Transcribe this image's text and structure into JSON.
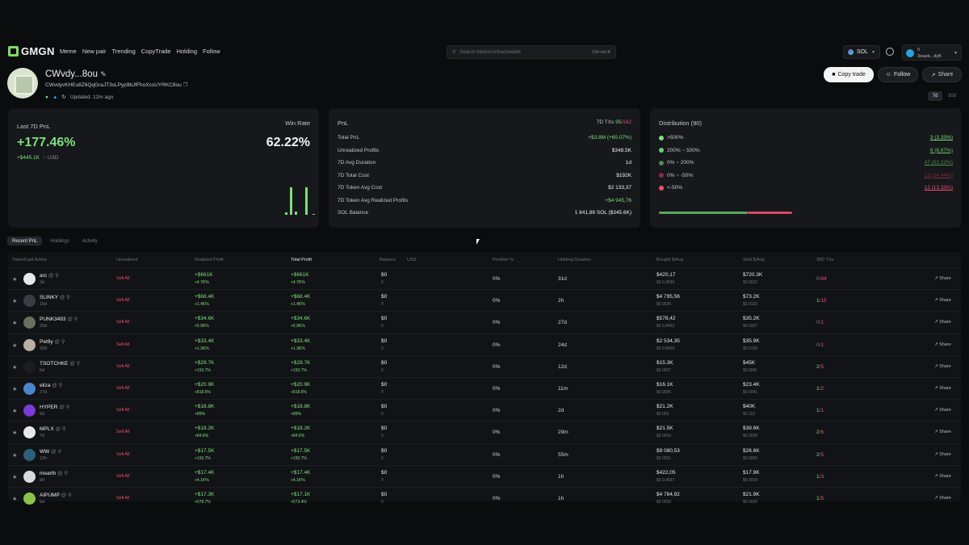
{
  "nav": {
    "logo": "GMGN",
    "links": [
      "Meme",
      "New pair",
      "Trending",
      "CopyTrade",
      "Holding",
      "Follow"
    ],
    "search_placeholder": "Search token/contract/wallet",
    "search_shortcut": "Ctrl ctrl K",
    "chain": "SOL",
    "wallet_balance": "0",
    "wallet_addr": "3wazk...dyB"
  },
  "profile": {
    "name": "CWvdy...8ou",
    "address": "CWvdyvKHEu8Z6QqGraJT3sLPyp9bJfFhoXcsUYRKC8ou",
    "updated": "Updated: 12m ago",
    "copy_trade_label": "Copy trade",
    "follow_label": "Follow",
    "share_label": "Share",
    "period_7d": "7d",
    "period_30d": "30d"
  },
  "card_last": {
    "label": "Last 7D PnL",
    "pnl_pct": "+177.46%",
    "pnl_usd": "+$445.1K",
    "usd_label": "USD",
    "winrate_label": "Win Rate",
    "winrate": "62.22%",
    "bars": [
      0.08,
      0.95,
      0.1,
      0.95,
      0.04
    ]
  },
  "card_pnl": {
    "title": "PnL",
    "txs_label": "7D TXs",
    "txs_buy": "95",
    "txs_sell": "162",
    "rows": [
      {
        "label": "Total PnL",
        "value": "+$3.8M (+65.07%)",
        "color": "green"
      },
      {
        "label": "Unrealized Profits",
        "value": "$348.5K",
        "color": "white"
      },
      {
        "label": "7D Avg Duration",
        "value": "1d",
        "color": "white"
      },
      {
        "label": "7D Total Cost",
        "value": "$192K",
        "color": "white"
      },
      {
        "label": "7D Token Avg Cost",
        "value": "$2 133,37",
        "color": "white"
      },
      {
        "label": "7D Token Avg Realized Profits",
        "value": "+$4 945,76",
        "color": "green"
      },
      {
        "label": "SOL Balance",
        "value": "1 841,86 SOL ($345.6K)",
        "color": "white"
      }
    ]
  },
  "card_dist": {
    "title": "Distribution (90)",
    "rows": [
      {
        "label": ">500%",
        "value": "3 (3.33%)",
        "color": "#7ee07a"
      },
      {
        "label": "200% ~ 500%",
        "value": "6 (6.67%)",
        "color": "#6fcf6a"
      },
      {
        "label": "0% ~ 200%",
        "value": "47 (52.22%)",
        "color": "#4f8e4b"
      },
      {
        "label": "0% ~ -50%",
        "value": "22 (24.44%)",
        "color": "#8b2c3c"
      },
      {
        "label": "<-50%",
        "value": "12 (13.33%)",
        "color": "#f0506e"
      }
    ]
  },
  "tabs": [
    "Recent PnL",
    "Holdings",
    "Activity"
  ],
  "table": {
    "headers": {
      "token": "Token/Last Active",
      "unrealized": "Unrealized",
      "realized": "Realized Profit",
      "total": "Total Profit",
      "balance": "Balance",
      "usd": "USD",
      "position": "Position %",
      "duration": "Holding Duration",
      "bought": "Bought $/Avg",
      "sold": "Sold $/Avg",
      "txs": "30D TXs"
    },
    "sell_all": "Sell All",
    "share": "Share",
    "rows": [
      {
        "name": "arc",
        "last": "3d",
        "rp": "+$661K",
        "rpp": "+4.7K%",
        "tp": "+$661K",
        "tpp": "+4.7K%",
        "bal": "$0",
        "bal2": "0",
        "pos": "0%",
        "dur": "31d",
        "b": "$420,17",
        "b2": "$0.0,3596",
        "s": "$720.3K",
        "s2": "$0.0922",
        "buy": "0",
        "sell": "44",
        "icon": "#e8e8ea"
      },
      {
        "name": "SLINKY",
        "last": "16d",
        "rp": "+$68.4K",
        "rpp": "+1.4K%",
        "tp": "+$68.4K",
        "tpp": "+1.4K%",
        "bal": "$0",
        "bal2": "0",
        "pos": "0%",
        "dur": "2h",
        "b": "$4 795,56",
        "b2": "$0.0026",
        "s": "$73.2K",
        "s2": "$0.0123",
        "buy": "1",
        "sell": "15",
        "icon": "#3a3d44"
      },
      {
        "name": "PUNK3493",
        "last": "29d",
        "rp": "+$34.6K",
        "rpp": "+5.9K%",
        "tp": "+$34.6K",
        "tpp": "+5.9K%",
        "bal": "$0",
        "bal2": "0",
        "pos": "0%",
        "dur": "27d",
        "b": "$578,42",
        "b2": "$0.0,4493",
        "s": "$35.2K",
        "s2": "$0.0327",
        "buy": "0",
        "sell": "1",
        "icon": "#6a6f60"
      },
      {
        "name": "Pet9y",
        "last": "29d",
        "rp": "+$33.4K",
        "rpp": "+1.3K%",
        "tp": "+$33.4K",
        "tpp": "+1.3K%",
        "bal": "$0",
        "bal2": "0",
        "pos": "0%",
        "dur": "24d",
        "b": "$2 534,35",
        "b2": "$0.0,9699",
        "s": "$35.9K",
        "s2": "$0.0138",
        "buy": "0",
        "sell": "1",
        "icon": "#b8b0a0"
      },
      {
        "name": "TSOTCHKE",
        "last": "6d",
        "rp": "+$29.7K",
        "rpp": "+193.7%",
        "tp": "+$29.7K",
        "tpp": "+193.7%",
        "bal": "$0",
        "bal2": "0",
        "pos": "0%",
        "dur": "12d",
        "b": "$15.3K",
        "b2": "$0.0027",
        "s": "$45K",
        "s2": "$0.0081",
        "buy": "2",
        "sell": "5",
        "icon": "#1b1d22"
      },
      {
        "name": "eliza",
        "last": "27d",
        "rp": "+$20.9K",
        "rpp": "+818.6%",
        "tp": "+$20.9K",
        "tpp": "+818.6%",
        "bal": "$0",
        "bal2": "0",
        "pos": "0%",
        "dur": "11m",
        "b": "$16.1K",
        "b2": "$0.0005",
        "s": "$23.4K",
        "s2": "$0.0041",
        "buy": "1",
        "sell": "2",
        "icon": "#4a86c8"
      },
      {
        "name": "HYPER",
        "last": "6d",
        "rp": "+$18.8K",
        "rpp": "+89%",
        "tp": "+$18.8K",
        "tpp": "+89%",
        "bal": "$0",
        "bal2": "0",
        "pos": "0%",
        "dur": "2d",
        "b": "$21.2K",
        "b2": "$0.059",
        "s": "$40K",
        "s2": "$0.115",
        "buy": "1",
        "sell": "1",
        "icon": "#7a3bd6"
      },
      {
        "name": "MPLX",
        "last": "7d",
        "rp": "+$18.2K",
        "rpp": "+84.6%",
        "tp": "+$18.2K",
        "tpp": "+84.6%",
        "bal": "$0",
        "bal2": "0",
        "pos": "0%",
        "dur": "29m",
        "b": "$21.5K",
        "b2": "$0.0019",
        "s": "$39.6K",
        "s2": "$0.0036",
        "buy": "2",
        "sell": "6",
        "icon": "#e8e8ea"
      },
      {
        "name": "WW",
        "last": "12h",
        "rp": "+$17.5K",
        "rpp": "+192.7%",
        "tp": "+$17.5K",
        "tpp": "+192.7%",
        "bal": "$0",
        "bal2": "0",
        "pos": "0%",
        "dur": "55m",
        "b": "$9 080,53",
        "b2": "$0.0021",
        "s": "$26.6K",
        "s2": "$0.0063",
        "buy": "2",
        "sell": "5",
        "icon": "#2f5f7a"
      },
      {
        "name": "mearth",
        "last": "9d",
        "rp": "+$17.4K",
        "rpp": "+4.1K%",
        "tp": "+$17.4K",
        "tpp": "+4.1K%",
        "bal": "$0",
        "bal2": "0",
        "pos": "0%",
        "dur": "1h",
        "b": "$422,05",
        "b2": "$0.0,4697",
        "s": "$17.9K",
        "s2": "$0.0019",
        "buy": "1",
        "sell": "3",
        "icon": "#d8dadd"
      },
      {
        "name": "AIPUMP",
        "last": "9d",
        "rp": "+$17.3K",
        "rpp": "+578.7%",
        "tp": "+$17.1K",
        "tpp": "+573.4%",
        "bal": "$0",
        "bal2": "0",
        "pos": "0%",
        "dur": "1h",
        "b": "$4 784,92",
        "b2": "$0.0039",
        "s": "$21.9K",
        "s2": "$0.0026",
        "buy": "1",
        "sell": "5",
        "icon": "#8bc34a"
      }
    ]
  }
}
